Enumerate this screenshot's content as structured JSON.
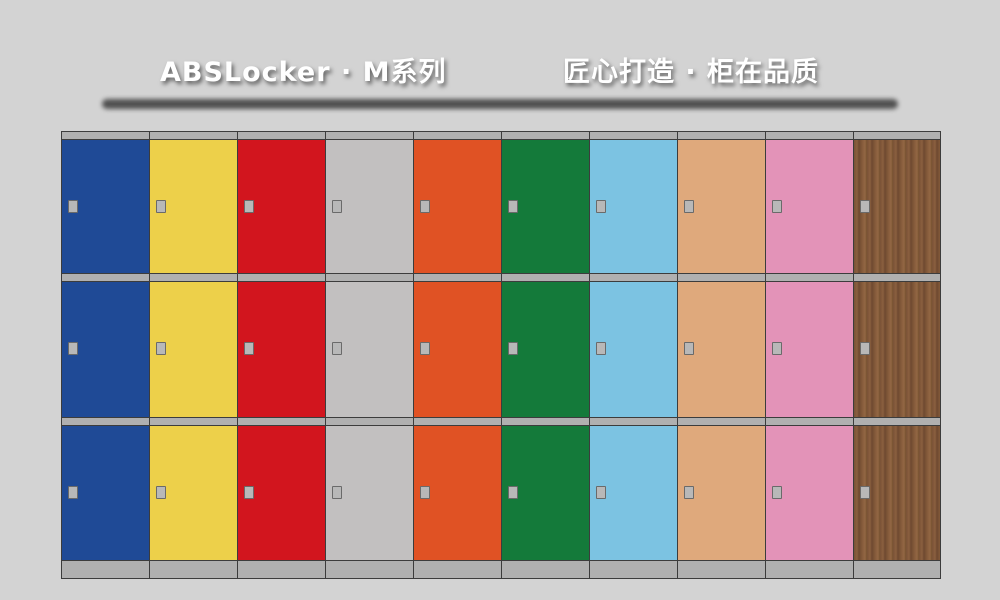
{
  "header": {
    "title_left": "ABSLocker · M系列",
    "title_right": "匠心打造 · 柜在品质"
  },
  "lockers": {
    "rows": 3,
    "columns": [
      {
        "color": "#1f4a96",
        "name": "blue"
      },
      {
        "color": "#edd04a",
        "name": "yellow"
      },
      {
        "color": "#d2151e",
        "name": "red"
      },
      {
        "color": "#c2c0c0",
        "name": "gray"
      },
      {
        "color": "#e05224",
        "name": "orange"
      },
      {
        "color": "#147a3a",
        "name": "green"
      },
      {
        "color": "#7cc3e2",
        "name": "sky-blue"
      },
      {
        "color": "#dfa97c",
        "name": "peach"
      },
      {
        "color": "#e393b8",
        "name": "pink"
      },
      {
        "color": "#7e5637",
        "name": "wood-grain"
      }
    ]
  }
}
